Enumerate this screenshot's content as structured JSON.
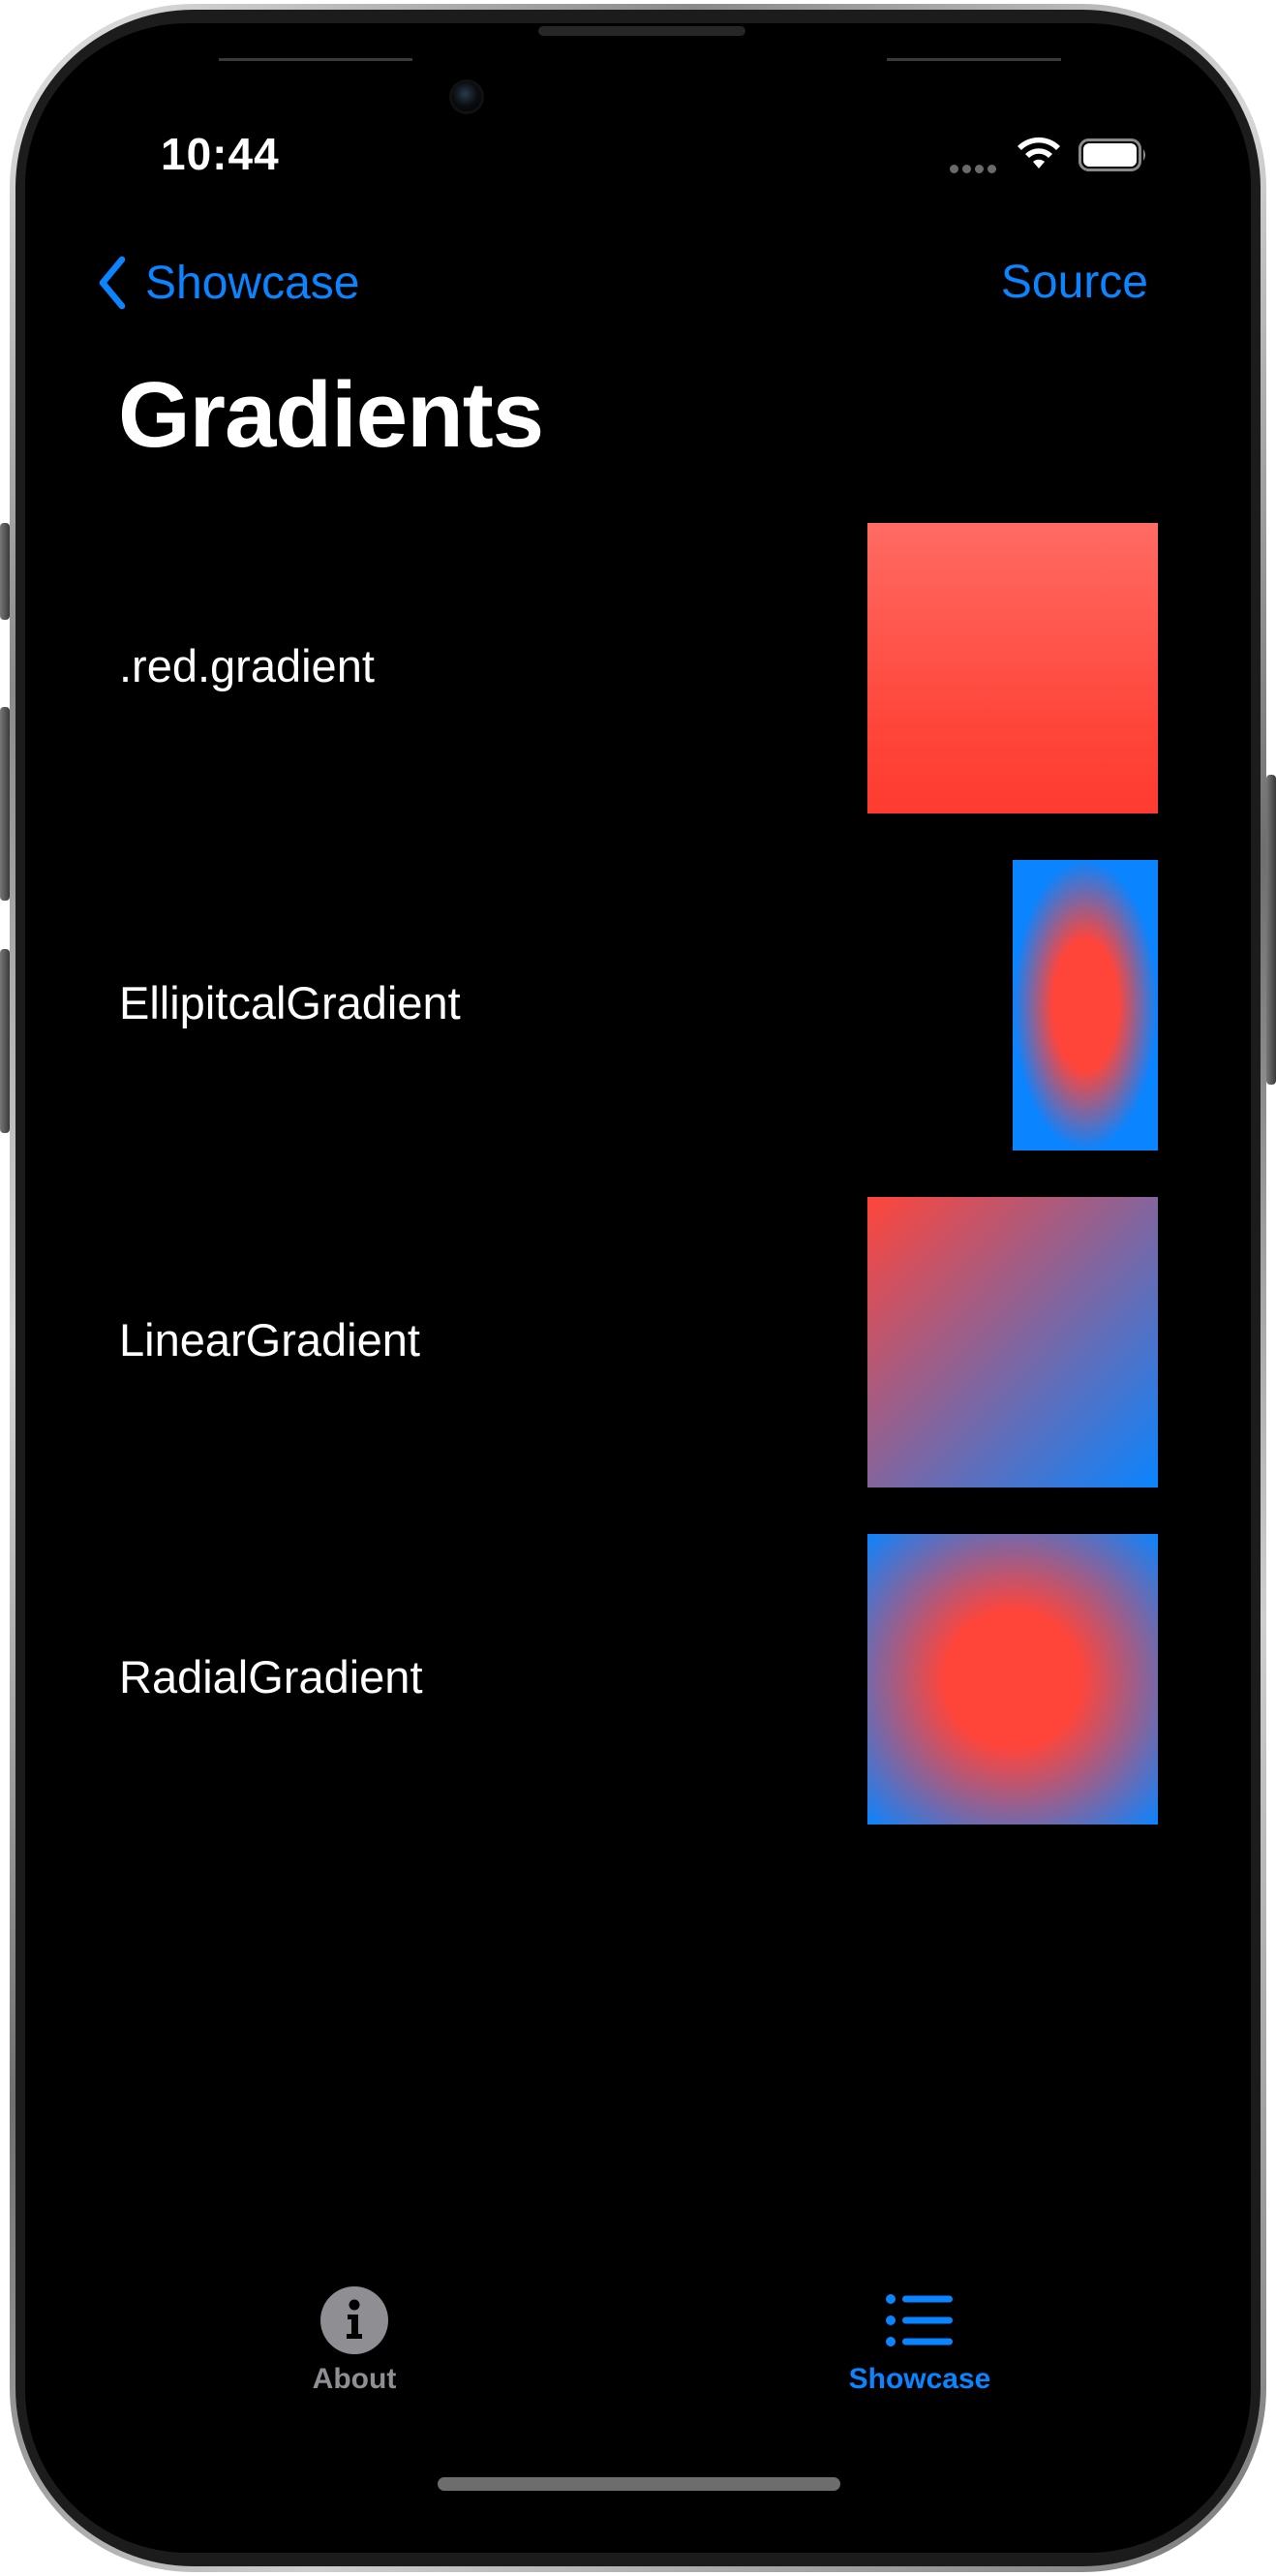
{
  "status_bar": {
    "time": "10:44",
    "signal_icon": "signal-dots-icon",
    "wifi_icon": "wifi-icon",
    "battery_icon": "battery-icon"
  },
  "nav": {
    "back_label": "Showcase",
    "back_icon": "chevron-left-icon",
    "right_label": "Source",
    "title": "Gradients"
  },
  "rows": [
    {
      "label": ".red.gradient",
      "swatch": "red-gradient-swatch"
    },
    {
      "label": "EllipitcalGradient",
      "swatch": "elliptical-gradient-swatch"
    },
    {
      "label": "LinearGradient",
      "swatch": "linear-gradient-swatch"
    },
    {
      "label": "RadialGradient",
      "swatch": "radial-gradient-swatch"
    }
  ],
  "tabbar": {
    "tabs": [
      {
        "label": "About",
        "icon": "info-circle-icon",
        "selected": false
      },
      {
        "label": "Showcase",
        "icon": "list-bullet-icon",
        "selected": true
      }
    ]
  },
  "colors": {
    "accent": "#0a84ff",
    "red": "#ff453a",
    "background": "#000000",
    "inactive_tab": "#8e8e93"
  }
}
